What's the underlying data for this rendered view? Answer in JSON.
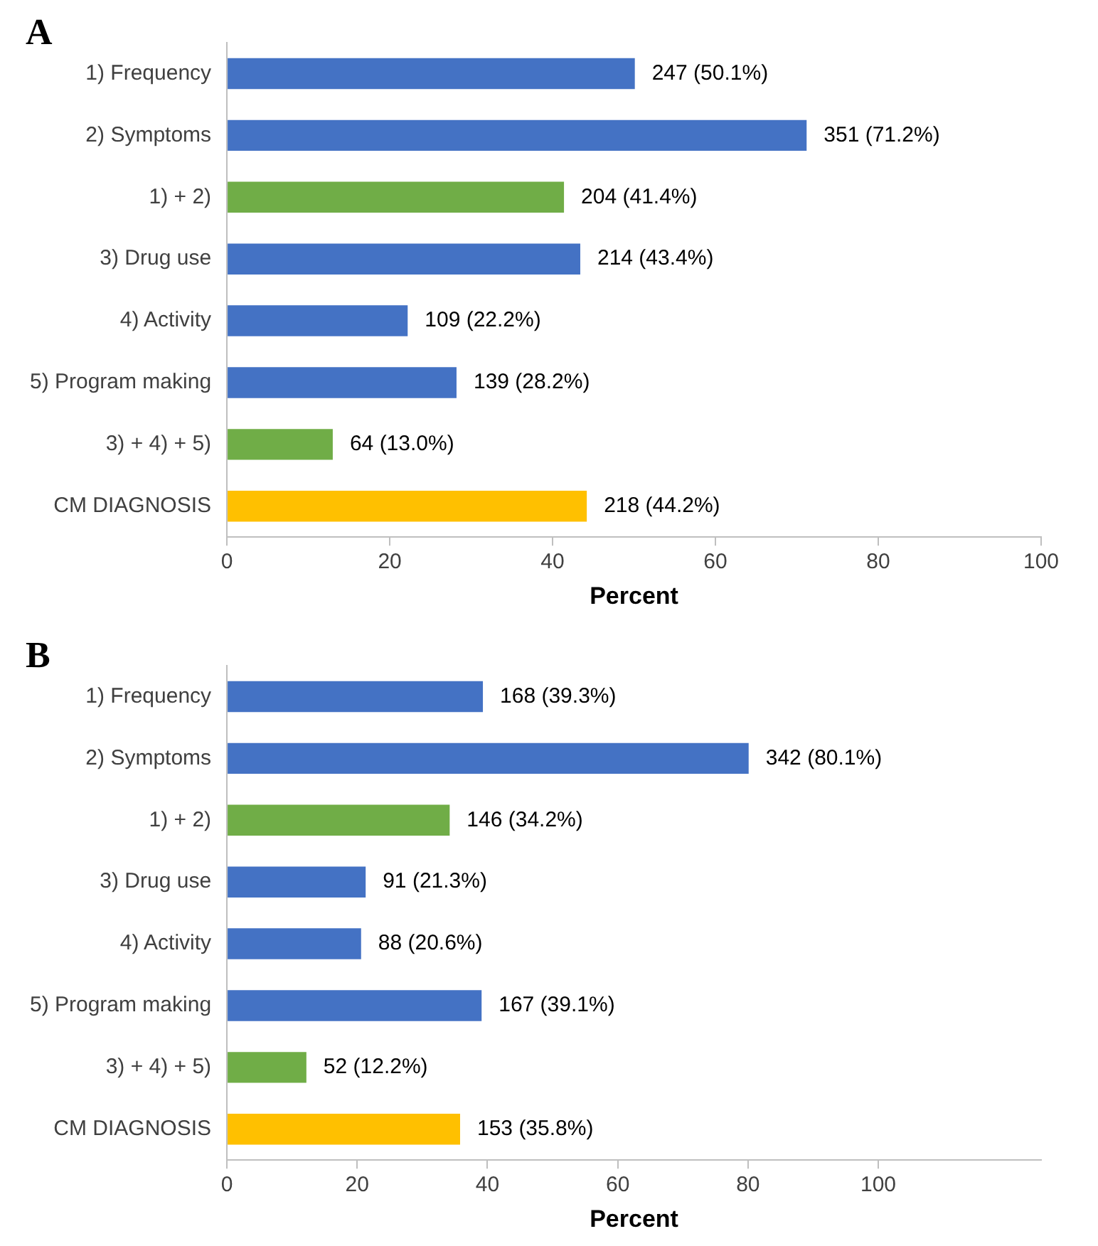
{
  "chart_data": [
    {
      "type": "bar",
      "title": "A",
      "orientation": "horizontal",
      "categories": [
        "1) Frequency",
        "2) Symptoms",
        "1) + 2)",
        "3) Drug use",
        "4) Activity",
        "5) Program making",
        "3) + 4) + 5)",
        "CM DIAGNOSIS"
      ],
      "values": [
        50.1,
        71.2,
        41.4,
        43.4,
        22.2,
        28.2,
        13.0,
        44.2
      ],
      "colors": [
        "#4472c4",
        "#4472c4",
        "#70ad47",
        "#4472c4",
        "#4472c4",
        "#4472c4",
        "#70ad47",
        "#ffc000"
      ],
      "value_labels": [
        "247 (50.1%)",
        "351 (71.2%)",
        "204 (41.4%)",
        "214 (43.4%)",
        "109 (22.2%)",
        "139 (28.2%)",
        "64 (13.0%)",
        "218 (44.2%)"
      ],
      "xlabel": "Percent",
      "xlim": [
        0,
        100
      ],
      "xticks": [
        0,
        20,
        40,
        60,
        80,
        100
      ],
      "grid": false,
      "legend": false
    },
    {
      "type": "bar",
      "title": "B",
      "orientation": "horizontal",
      "categories": [
        "1) Frequency",
        "2) Symptoms",
        "1) + 2)",
        "3) Drug use",
        "4) Activity",
        "5) Program making",
        "3) + 4) + 5)",
        "CM DIAGNOSIS"
      ],
      "values": [
        39.3,
        80.1,
        34.2,
        21.3,
        20.6,
        39.1,
        12.2,
        35.8
      ],
      "colors": [
        "#4472c4",
        "#4472c4",
        "#70ad47",
        "#4472c4",
        "#4472c4",
        "#4472c4",
        "#70ad47",
        "#ffc000"
      ],
      "value_labels": [
        "168 (39.3%)",
        "342 (80.1%)",
        "146 (34.2%)",
        "91 (21.3%)",
        "88 (20.6%)",
        "167 (39.1%)",
        "52 (12.2%)",
        "153 (35.8%)"
      ],
      "xlabel": "Percent",
      "xlim": [
        0,
        125
      ],
      "xticks": [
        0,
        20,
        40,
        60,
        80,
        100
      ],
      "grid": false,
      "legend": false
    }
  ]
}
